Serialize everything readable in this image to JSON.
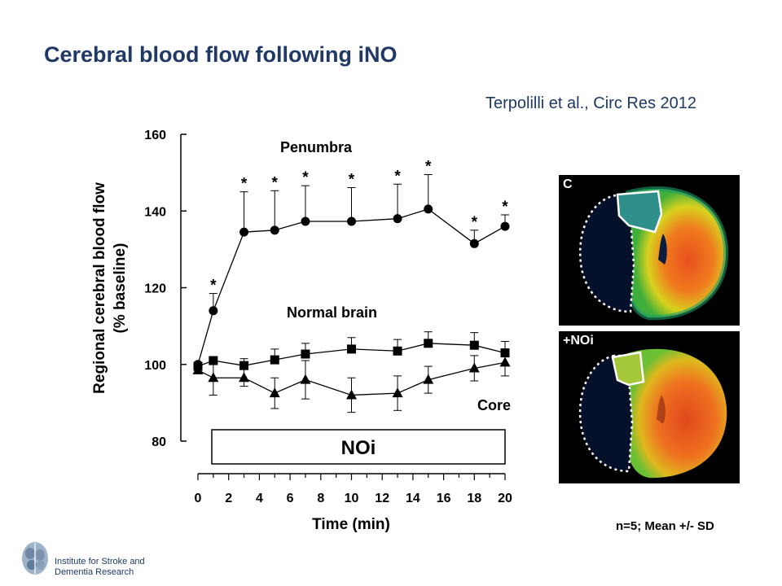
{
  "slide": {
    "title": "Cerebral blood flow following iNO",
    "citation": "Terpolilli et al., Circ Res 2012",
    "note": "n=5; Mean +/- SD"
  },
  "images": [
    {
      "label": "C"
    },
    {
      "label": "+NOi"
    }
  ],
  "footer": {
    "institute_line1": "Institute for Stroke and",
    "institute_line2": "Dementia Research"
  },
  "chart_data": {
    "type": "line",
    "xlabel": "Time (min)",
    "ylabel_line1": "Regional cerebral blood flow",
    "ylabel_line2": "(% baseline)",
    "xlim": [
      0,
      20
    ],
    "ylim": [
      80,
      160
    ],
    "xticks": [
      0,
      2,
      4,
      6,
      8,
      10,
      12,
      14,
      16,
      18,
      20
    ],
    "yticks": [
      80,
      100,
      120,
      140,
      160
    ],
    "treatment_label": "NOi",
    "significance_marker": "*",
    "series": [
      {
        "name": "Penumbra",
        "marker": "circle",
        "x": [
          0,
          1,
          3,
          5,
          7,
          10,
          13,
          15,
          18,
          20
        ],
        "values": [
          100,
          114,
          134.5,
          135,
          137.3,
          137.3,
          138,
          140.5,
          131.5,
          136
        ],
        "sd": [
          null,
          4.5,
          10.5,
          10.3,
          9.3,
          8.8,
          9.0,
          9.0,
          3.5,
          3.0
        ],
        "significant": [
          false,
          true,
          true,
          true,
          true,
          true,
          true,
          true,
          true,
          true
        ]
      },
      {
        "name": "Normal brain",
        "marker": "square",
        "x": [
          0,
          1,
          3,
          5,
          7,
          10,
          13,
          15,
          18,
          20
        ],
        "values": [
          99.5,
          101,
          99.7,
          101.2,
          102.7,
          104,
          103.5,
          105.5,
          105,
          103
        ],
        "sd": [
          null,
          null,
          1.8,
          2.8,
          2.8,
          3.0,
          3.0,
          3.0,
          3.3,
          3.0
        ],
        "significant": [
          false,
          false,
          false,
          false,
          false,
          false,
          false,
          false,
          false,
          false
        ]
      },
      {
        "name": "Core",
        "marker": "triangle",
        "x": [
          0,
          1,
          3,
          5,
          7,
          10,
          13,
          15,
          18,
          20
        ],
        "values": [
          98.5,
          96.5,
          96.5,
          92.5,
          96,
          92,
          92.5,
          96,
          99,
          100.5
        ],
        "sd": [
          null,
          4.5,
          2.2,
          4.0,
          5.0,
          4.5,
          4.5,
          3.5,
          3.3,
          3.5
        ],
        "significant": [
          false,
          false,
          false,
          false,
          false,
          false,
          false,
          false,
          false,
          false
        ]
      }
    ]
  }
}
